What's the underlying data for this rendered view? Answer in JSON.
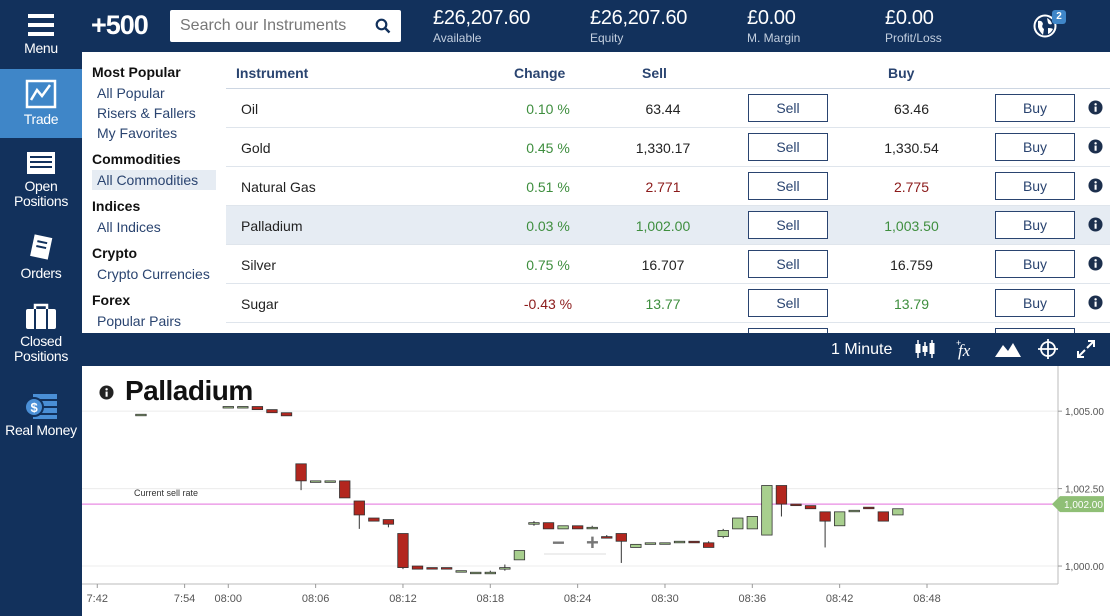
{
  "sidebar": {
    "items": [
      {
        "label": "Menu",
        "icon": "hamburger-icon"
      },
      {
        "label": "Trade",
        "icon": "trade-chart-icon",
        "active": true
      },
      {
        "label": "Open Positions",
        "icon": "open-positions-icon"
      },
      {
        "label": "Orders",
        "icon": "orders-icon"
      },
      {
        "label": "Closed Positions",
        "icon": "briefcase-icon"
      },
      {
        "label": "Real Money",
        "icon": "money-stack-icon"
      }
    ]
  },
  "header": {
    "logo": "+500",
    "search_placeholder": "Search our Instruments",
    "stats": [
      {
        "value": "£26,207.60",
        "label": "Available"
      },
      {
        "value": "£26,207.60",
        "label": "Equity"
      },
      {
        "value": "£0.00",
        "label": "M. Margin"
      },
      {
        "value": "£0.00",
        "label": "Profit/Loss"
      }
    ],
    "notification_count": "2"
  },
  "categories": {
    "groups": [
      {
        "title": "Most Popular",
        "items": [
          "All Popular",
          "Risers & Fallers",
          "My Favorites"
        ]
      },
      {
        "title": "Commodities",
        "items": [
          "All Commodities"
        ]
      },
      {
        "title": "Indices",
        "items": [
          "All Indices"
        ]
      },
      {
        "title": "Crypto",
        "items": [
          "Crypto Currencies"
        ]
      },
      {
        "title": "Forex",
        "items": [
          "Popular Pairs"
        ]
      }
    ],
    "selected": "All Commodities"
  },
  "table": {
    "headers": {
      "instrument": "Instrument",
      "change": "Change",
      "sell": "Sell",
      "buy": "Buy"
    },
    "sell_button": "Sell",
    "buy_button": "Buy",
    "colors": {
      "up": "#3e8e3e",
      "down": "#8b1a1a",
      "neutral": "#222222"
    },
    "rows": [
      {
        "instrument": "Oil",
        "change": "0.10 %",
        "change_dir": "up",
        "sell": "63.44",
        "buy": "63.46",
        "price_dir": "neutral"
      },
      {
        "instrument": "Gold",
        "change": "0.45 %",
        "change_dir": "up",
        "sell": "1,330.17",
        "buy": "1,330.54",
        "price_dir": "neutral"
      },
      {
        "instrument": "Natural Gas",
        "change": "0.51 %",
        "change_dir": "up",
        "sell": "2.771",
        "buy": "2.775",
        "price_dir": "down"
      },
      {
        "instrument": "Palladium",
        "change": "0.03 %",
        "change_dir": "up",
        "sell": "1,002.00",
        "buy": "1,003.50",
        "price_dir": "up",
        "highlighted": true
      },
      {
        "instrument": "Silver",
        "change": "0.75 %",
        "change_dir": "up",
        "sell": "16.707",
        "buy": "16.759",
        "price_dir": "neutral"
      },
      {
        "instrument": "Sugar",
        "change": "-0.43 %",
        "change_dir": "down",
        "sell": "13.77",
        "buy": "13.79",
        "price_dir": "up"
      }
    ]
  },
  "chart_toolbar": {
    "interval": "1 Minute",
    "tools": [
      "candlestick-icon",
      "fx-indicator-icon",
      "mountain-chart-icon",
      "crosshair-icon",
      "expand-icon"
    ]
  },
  "chart_data": {
    "type": "candlestick",
    "title": "Palladium",
    "current_rate_label": "Current sell rate",
    "current_rate": 1002.0,
    "current_rate_text": "1,002.00",
    "colors": {
      "up": "#a8cf8e",
      "down": "#b3261e",
      "rate_line": "#e98be3",
      "rate_tag": "#8fbf76"
    },
    "ylim": [
      999.42,
      1006.2
    ],
    "yticks": [
      1000.0,
      1002.5,
      1005.0
    ],
    "ytick_labels": [
      "1,000.00",
      "1,002.50",
      "1,005.00"
    ],
    "xlim": [
      -0.5,
      66
    ],
    "xticks": [
      0,
      6,
      9,
      15,
      21,
      27,
      33,
      39,
      43,
      48,
      54,
      60,
      63
    ],
    "xtick_labels": [
      "7:42",
      "7:54",
      "08:00",
      "08:06",
      "08:12",
      "08:18",
      "08:24",
      "08:30",
      "08:36",
      "08:42",
      "08:48"
    ],
    "xtick_label_index": [
      0,
      6,
      9,
      15,
      21,
      27,
      33,
      39,
      45,
      51,
      57
    ],
    "candles": [
      {
        "t": 3,
        "o": 1004.9,
        "h": 1004.9,
        "c": 1004.9,
        "l": 1004.9
      },
      {
        "t": 9,
        "o": 1005.15,
        "h": 1005.15,
        "c": 1005.15,
        "l": 1005.15
      },
      {
        "t": 10,
        "o": 1005.15,
        "h": 1005.15,
        "c": 1005.15,
        "l": 1005.15
      },
      {
        "t": 11,
        "o": 1005.15,
        "h": 1005.15,
        "c": 1005.05,
        "l": 1005.05
      },
      {
        "t": 12,
        "o": 1005.05,
        "h": 1005.05,
        "c": 1004.95,
        "l": 1004.95
      },
      {
        "t": 13,
        "o": 1004.95,
        "h": 1004.95,
        "c": 1004.85,
        "l": 1004.85
      },
      {
        "t": 14,
        "o": 1003.3,
        "h": 1003.3,
        "c": 1002.75,
        "l": 1002.45
      },
      {
        "t": 15,
        "o": 1002.75,
        "h": 1002.75,
        "c": 1002.75,
        "l": 1002.75
      },
      {
        "t": 16,
        "o": 1002.75,
        "h": 1002.75,
        "c": 1002.75,
        "l": 1002.75
      },
      {
        "t": 17,
        "o": 1002.75,
        "h": 1002.75,
        "c": 1002.2,
        "l": 1002.2
      },
      {
        "t": 18,
        "o": 1002.1,
        "h": 1002.1,
        "c": 1001.65,
        "l": 1001.2
      },
      {
        "t": 19,
        "o": 1001.55,
        "h": 1001.55,
        "c": 1001.45,
        "l": 1001.45
      },
      {
        "t": 20,
        "o": 1001.5,
        "h": 1001.5,
        "c": 1001.35,
        "l": 1001.25
      },
      {
        "t": 21,
        "o": 1001.05,
        "h": 1001.05,
        "c": 999.95,
        "l": 999.9
      },
      {
        "t": 22,
        "o": 1000.0,
        "h": 1000.0,
        "c": 999.9,
        "l": 999.9
      },
      {
        "t": 23,
        "o": 999.95,
        "h": 999.95,
        "c": 999.9,
        "l": 999.9
      },
      {
        "t": 24,
        "o": 999.95,
        "h": 999.95,
        "c": 999.9,
        "l": 999.9
      },
      {
        "t": 25,
        "o": 999.85,
        "h": 999.85,
        "c": 999.85,
        "l": 999.85
      },
      {
        "t": 26,
        "o": 999.8,
        "h": 999.8,
        "c": 999.8,
        "l": 999.8
      },
      {
        "t": 27,
        "o": 999.75,
        "h": 999.85,
        "c": 999.8,
        "l": 999.75
      },
      {
        "t": 28,
        "o": 999.9,
        "h": 1000.05,
        "c": 999.95,
        "l": 999.85
      },
      {
        "t": 29,
        "o": 1000.2,
        "h": 1000.5,
        "c": 1000.5,
        "l": 1000.2
      },
      {
        "t": 30,
        "o": 1001.35,
        "h": 1001.45,
        "c": 1001.4,
        "l": 1001.3
      },
      {
        "t": 31,
        "o": 1001.4,
        "h": 1001.4,
        "c": 1001.2,
        "l": 1001.2
      },
      {
        "t": 32,
        "o": 1001.2,
        "h": 1001.3,
        "c": 1001.3,
        "l": 1001.2
      },
      {
        "t": 33,
        "o": 1001.3,
        "h": 1001.3,
        "c": 1001.2,
        "l": 1001.2
      },
      {
        "t": 34,
        "o": 1001.25,
        "h": 1001.3,
        "c": 1001.25,
        "l": 1001.2
      },
      {
        "t": 35,
        "o": 1000.95,
        "h": 1001.0,
        "c": 1000.9,
        "l": 1000.9
      },
      {
        "t": 36,
        "o": 1001.05,
        "h": 1001.05,
        "c": 1000.8,
        "l": 1000.1
      },
      {
        "t": 37,
        "o": 1000.6,
        "h": 1000.7,
        "c": 1000.7,
        "l": 1000.6
      },
      {
        "t": 38,
        "o": 1000.7,
        "h": 1000.75,
        "c": 1000.75,
        "l": 1000.7
      },
      {
        "t": 39,
        "o": 1000.75,
        "h": 1000.75,
        "c": 1000.75,
        "l": 1000.75
      },
      {
        "t": 40,
        "o": 1000.75,
        "h": 1000.8,
        "c": 1000.8,
        "l": 1000.75
      },
      {
        "t": 41,
        "o": 1000.8,
        "h": 1000.8,
        "c": 1000.75,
        "l": 1000.75
      },
      {
        "t": 42,
        "o": 1000.75,
        "h": 1000.8,
        "c": 1000.6,
        "l": 1000.6
      },
      {
        "t": 43,
        "o": 1000.95,
        "h": 1001.2,
        "c": 1001.15,
        "l": 1000.9
      },
      {
        "t": 44,
        "o": 1001.2,
        "h": 1001.55,
        "c": 1001.55,
        "l": 1001.2
      },
      {
        "t": 45,
        "o": 1001.2,
        "h": 1001.6,
        "c": 1001.6,
        "l": 1001.2
      },
      {
        "t": 46,
        "o": 1001.0,
        "h": 1002.6,
        "c": 1002.6,
        "l": 1001.0
      },
      {
        "t": 47,
        "o": 1002.6,
        "h": 1002.6,
        "c": 1002.0,
        "l": 1001.6
      },
      {
        "t": 48,
        "o": 1002.0,
        "h": 1002.0,
        "c": 1001.95,
        "l": 1001.95
      },
      {
        "t": 49,
        "o": 1001.95,
        "h": 1001.95,
        "c": 1001.85,
        "l": 1001.85
      },
      {
        "t": 50,
        "o": 1001.75,
        "h": 1001.75,
        "c": 1001.45,
        "l": 1000.6
      },
      {
        "t": 51,
        "o": 1001.3,
        "h": 1001.75,
        "c": 1001.75,
        "l": 1001.3
      },
      {
        "t": 52,
        "o": 1001.8,
        "h": 1001.8,
        "c": 1001.8,
        "l": 1001.8
      },
      {
        "t": 53,
        "o": 1001.9,
        "h": 1001.9,
        "c": 1001.85,
        "l": 1001.85
      },
      {
        "t": 54,
        "o": 1001.75,
        "h": 1001.75,
        "c": 1001.45,
        "l": 1001.45
      },
      {
        "t": 55,
        "o": 1001.65,
        "h": 1001.85,
        "c": 1001.85,
        "l": 1001.65
      }
    ]
  }
}
